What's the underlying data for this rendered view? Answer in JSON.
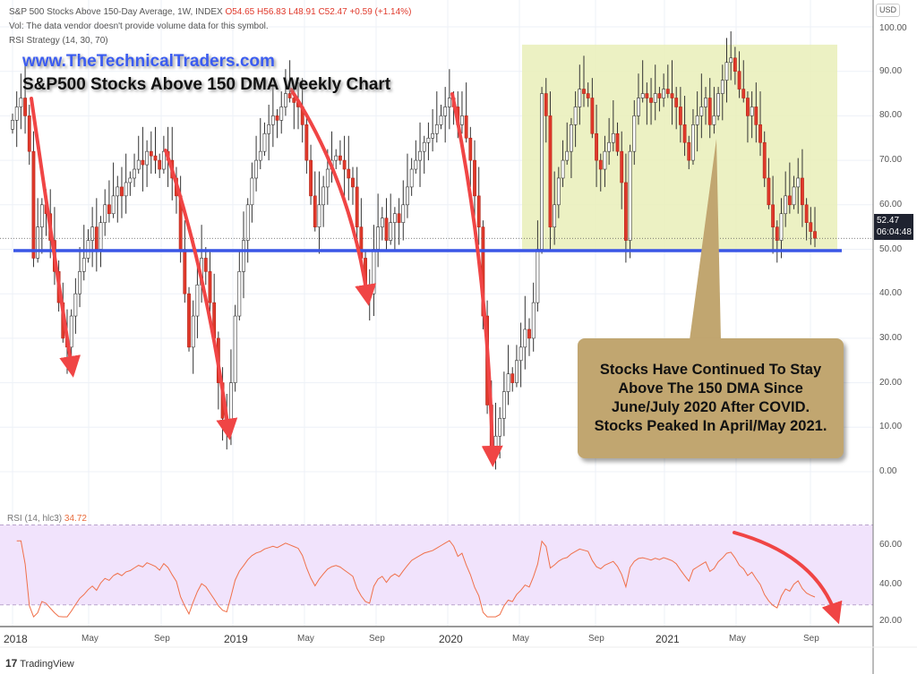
{
  "header": {
    "symbol_line": "S&P 500 Stocks Above 150-Day Average, 1W, INDEX",
    "open": "O54.65",
    "high": "H56.83",
    "low": "L48.91",
    "close": "C52.47",
    "change": "+0.59 (+1.14%)",
    "vol_line": "Vol: The data vendor doesn't provide volume data for this symbol.",
    "strategy_line": "RSI Strategy (14, 30, 70)"
  },
  "overlay": {
    "website": "www.TheTechnicalTraders.com",
    "title": "S&P500 Stocks Above 150 DMA Weekly Chart",
    "callout": "Stocks Have Continued To Stay Above The 150 DMA Since June/July 2020 After COVID. Stocks Peaked In April/May 2021."
  },
  "price_axis": {
    "currency": "USD",
    "ticks": [
      "100.00",
      "90.00",
      "80.00",
      "70.00",
      "60.00",
      "50.00",
      "40.00",
      "30.00",
      "20.00",
      "10.00",
      "0.00"
    ],
    "last_price": "52.47",
    "countdown": "06:04:48"
  },
  "rsi": {
    "legend_name": "RSI (14, hlc3)",
    "legend_value": "34.72",
    "ticks": [
      "60.00",
      "40.00",
      "20.00"
    ]
  },
  "time_axis": [
    "2018",
    "May",
    "Sep",
    "2019",
    "May",
    "Sep",
    "2020",
    "May",
    "Sep",
    "2021",
    "May",
    "Sep"
  ],
  "footer": {
    "brand": "TradingView"
  },
  "colors": {
    "up": "#ffffff",
    "down": "#e0392b",
    "support": "#3a56e6",
    "highlight": "#e9efb9",
    "rsi_band": "#f1e3fc",
    "rsi_line": "#f0704a",
    "arrow": "#f04545"
  },
  "chart_data": {
    "type": "candlestick",
    "title": "S&P500 Stocks Above 150 DMA Weekly Chart",
    "interval": "1W",
    "ylim": [
      0,
      100
    ],
    "support_level": 49.7,
    "highlight_range": {
      "from": "2020-06",
      "to": "2021-09",
      "ymin": 50,
      "ymax": 96
    },
    "weekly_close": [
      79,
      82,
      84,
      80,
      72,
      48,
      55,
      60,
      58,
      52,
      45,
      38,
      30,
      28,
      35,
      40,
      45,
      48,
      52,
      55,
      50,
      56,
      60,
      58,
      62,
      64,
      62,
      65,
      66,
      68,
      70,
      69,
      72,
      71,
      70,
      68,
      72,
      70,
      66,
      62,
      50,
      40,
      28,
      35,
      42,
      48,
      45,
      38,
      30,
      20,
      12,
      9,
      20,
      35,
      45,
      52,
      60,
      66,
      70,
      72,
      76,
      78,
      80,
      79,
      82,
      85,
      84,
      83,
      82,
      78,
      70,
      62,
      55,
      60,
      64,
      68,
      70,
      71,
      70,
      68,
      66,
      64,
      55,
      48,
      42,
      40,
      50,
      55,
      57,
      52,
      56,
      58,
      56,
      60,
      64,
      68,
      70,
      72,
      74,
      75,
      76,
      78,
      80,
      82,
      84,
      82,
      78,
      80,
      75,
      70,
      62,
      55,
      35,
      15,
      5,
      8,
      12,
      18,
      22,
      20,
      25,
      28,
      32,
      30,
      38,
      50,
      85,
      80,
      55,
      60,
      66,
      70,
      72,
      78,
      82,
      86,
      85,
      84,
      76,
      70,
      68,
      72,
      74,
      76,
      72,
      65,
      52,
      72,
      80,
      84,
      85,
      84,
      83,
      85,
      84,
      86,
      85,
      84,
      82,
      78,
      74,
      70,
      78,
      80,
      82,
      84,
      78,
      80,
      85,
      88,
      92,
      93,
      90,
      86,
      84,
      80,
      82,
      78,
      74,
      66,
      60,
      55,
      52,
      58,
      62,
      60,
      64,
      66,
      60,
      56,
      54,
      52.47
    ],
    "rsi_range": [
      20,
      70
    ],
    "rsi_bands": [
      30,
      70
    ]
  }
}
